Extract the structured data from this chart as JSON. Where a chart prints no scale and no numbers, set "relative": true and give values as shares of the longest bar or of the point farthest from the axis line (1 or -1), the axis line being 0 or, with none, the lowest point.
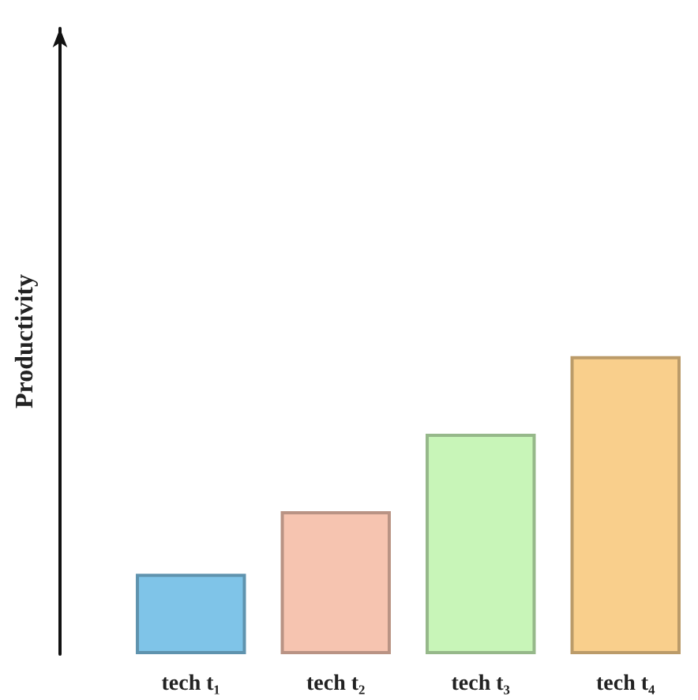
{
  "chart_data": {
    "type": "bar",
    "relative": true,
    "ylabel": "Productivity",
    "categories": [
      "tech t₁",
      "tech t₂",
      "tech t₃",
      "tech t₄"
    ],
    "values": [
      0.27,
      0.48,
      0.74,
      1
    ],
    "colors": [
      "#7fc4e8",
      "#f6c4b0",
      "#c8f5b8",
      "#f9cf8c"
    ],
    "data_labels": false
  }
}
